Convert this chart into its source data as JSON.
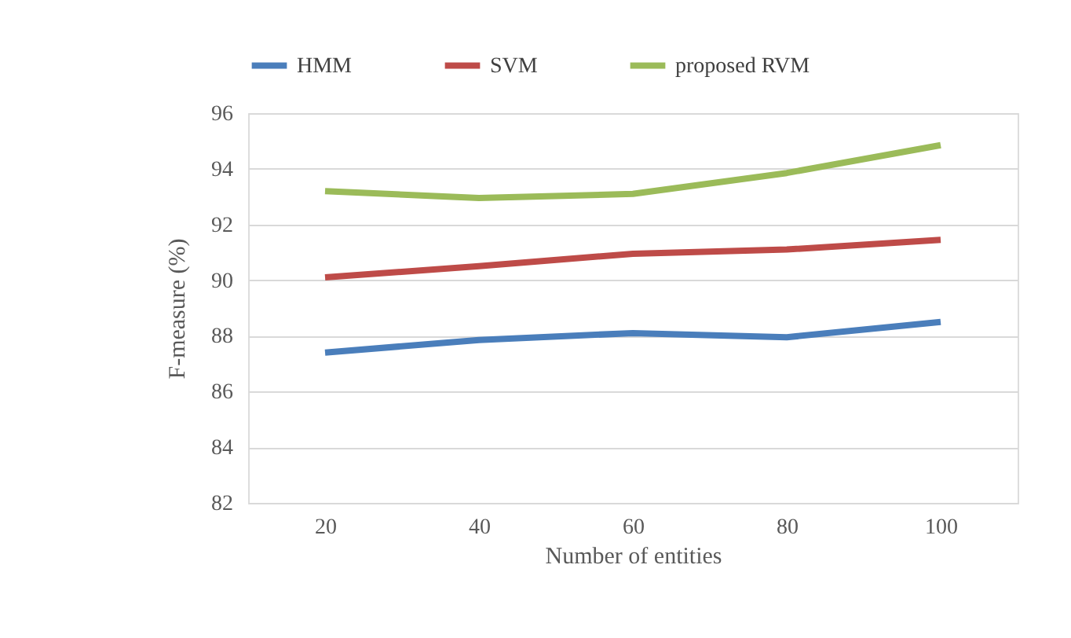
{
  "chart_data": {
    "type": "line",
    "xlabel": "Number of entities",
    "ylabel": "F-measure (%)",
    "categories": [
      "20",
      "40",
      "60",
      "80",
      "100"
    ],
    "series": [
      {
        "name": "HMM",
        "color": "#4a7ebb",
        "values": [
          87.4,
          87.85,
          88.1,
          87.95,
          88.5
        ]
      },
      {
        "name": "SVM",
        "color": "#be4b48",
        "values": [
          90.1,
          90.5,
          90.95,
          91.1,
          91.45
        ]
      },
      {
        "name": "proposed RVM",
        "color": "#9bbb59",
        "values": [
          93.2,
          92.95,
          93.1,
          93.85,
          94.85
        ]
      }
    ],
    "ylim": [
      82,
      96
    ],
    "yticks": [
      82,
      84,
      86,
      88,
      90,
      92,
      94,
      96
    ],
    "grid": "y",
    "legend": "top",
    "marker": "none",
    "line_style": "solid"
  }
}
